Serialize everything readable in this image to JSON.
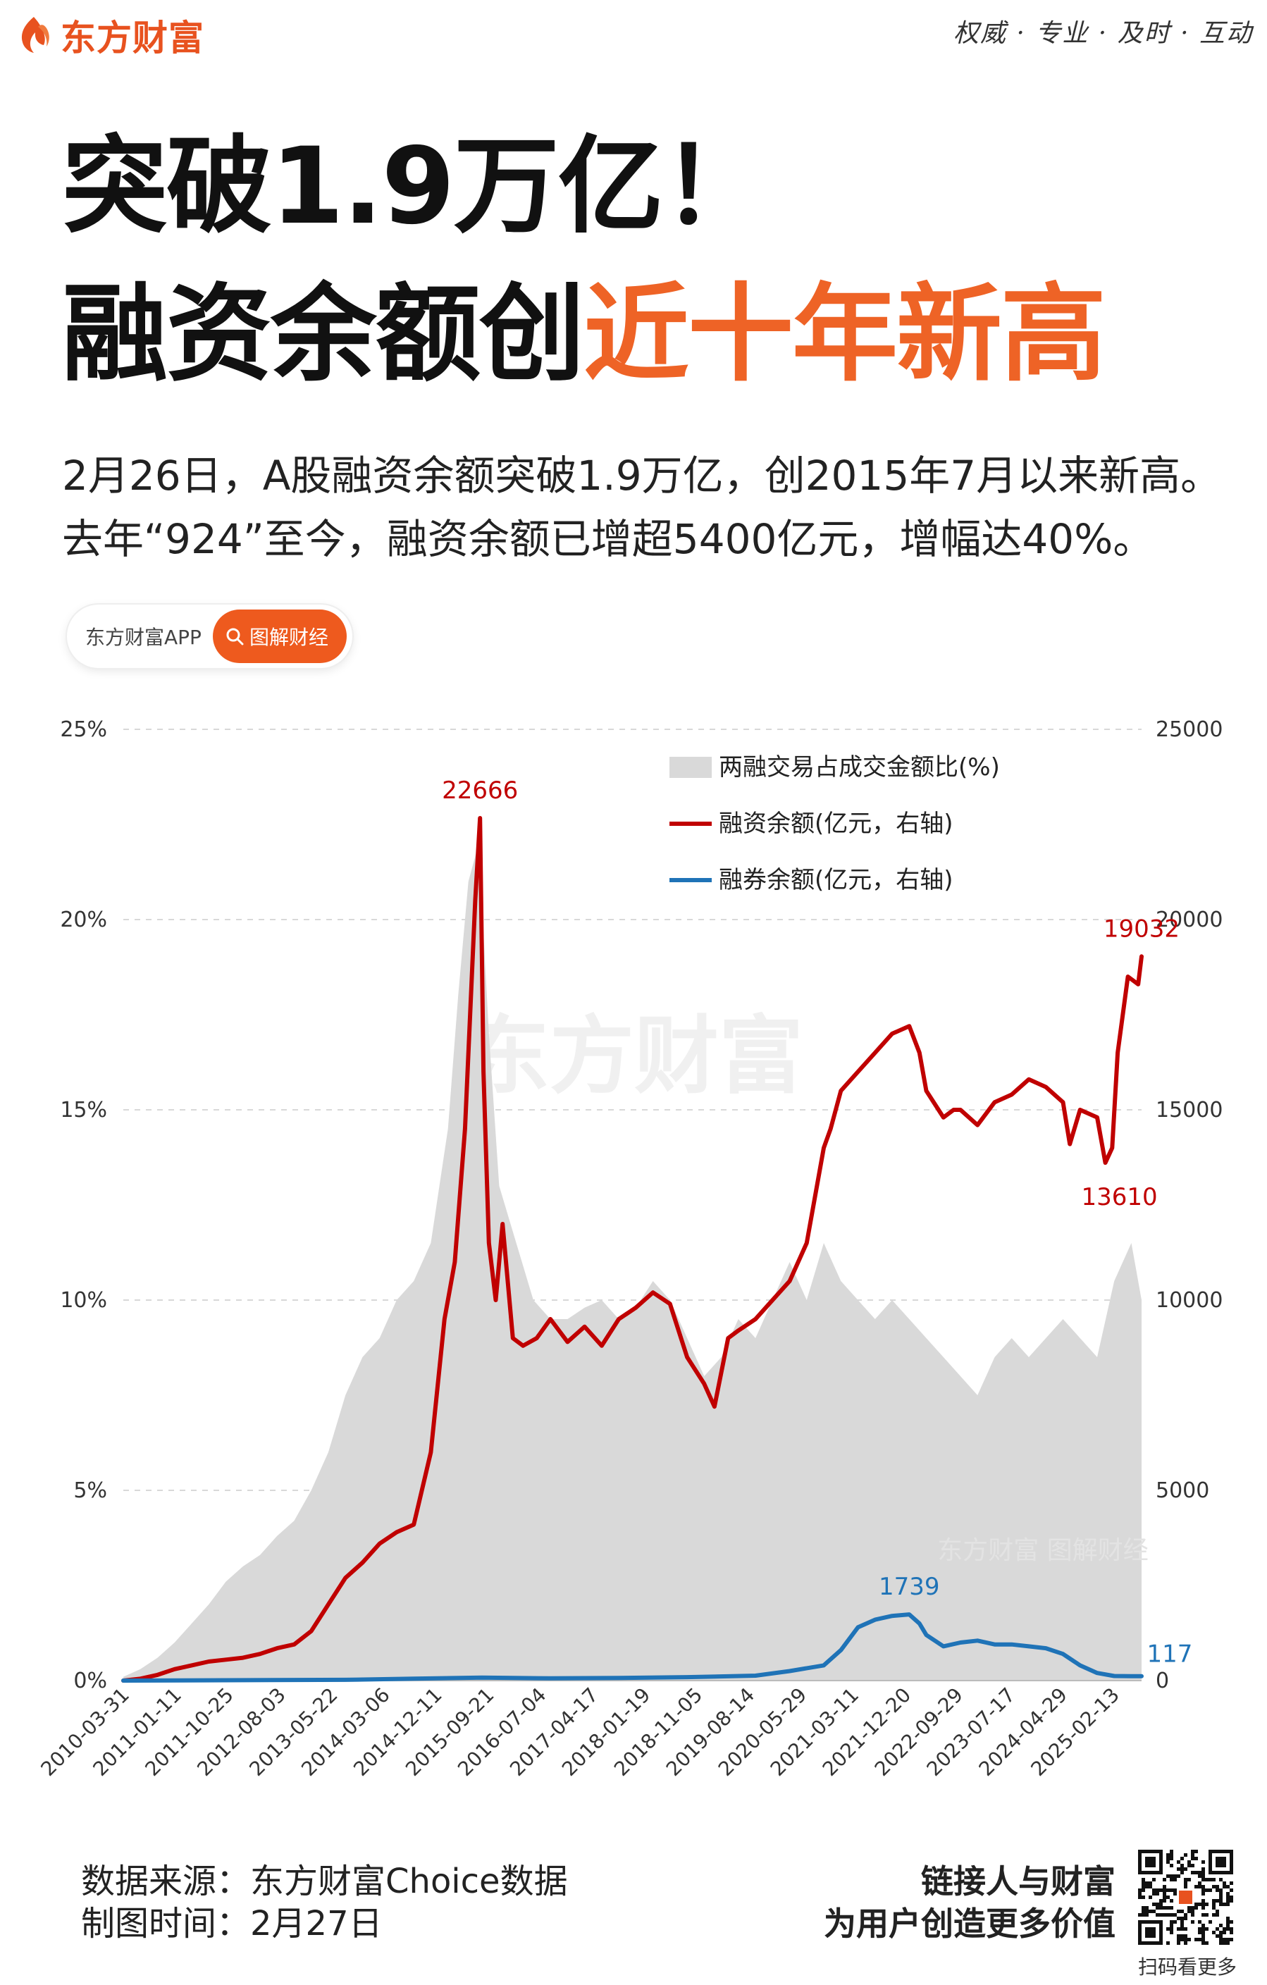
{
  "header": {
    "brand": "东方财富",
    "slogan": "权威 · 专业 · 及时 · 互动",
    "brand_color": "#e8521f"
  },
  "headline": {
    "line1": "突破1.9万亿！",
    "line2_prefix": "融资余额创",
    "line2_highlight": "近十年新高",
    "highlight_color": "#ee6326"
  },
  "summary": {
    "line1": "2月26日，A股融资余额突破1.9万亿，创2015年7月以来新高。",
    "line2": "去年“924”至今，融资余额已增超5400亿元，增幅达40%。"
  },
  "tag": {
    "left": "东方财富APP",
    "right": "图解财经",
    "icon": "search-icon"
  },
  "chart_data": {
    "type": "line",
    "watermark_main": "东方财富",
    "watermark_sub": "东方财富 图解财经",
    "left_axis": {
      "ticks": [
        "0%",
        "5%",
        "10%",
        "15%",
        "20%",
        "25%"
      ],
      "ylim": [
        0,
        25
      ]
    },
    "right_axis": {
      "ticks": [
        "0",
        "5000",
        "10000",
        "15000",
        "20000",
        "25000"
      ],
      "ylim": [
        0,
        25000
      ]
    },
    "x_ticks": [
      "2010-03-31",
      "2011-01-11",
      "2011-10-25",
      "2012-08-03",
      "2013-05-22",
      "2014-03-06",
      "2014-12-11",
      "2015-09-21",
      "2016-07-04",
      "2017-04-17",
      "2018-01-19",
      "2018-11-05",
      "2019-08-14",
      "2020-05-29",
      "2021-03-11",
      "2021-12-20",
      "2022-09-29",
      "2023-07-17",
      "2024-04-29",
      "2025-02-13"
    ],
    "grid": true,
    "legend_position": "top-right",
    "series": [
      {
        "name": "两融交易占成交金额比(%)",
        "kind": "area",
        "axis": "left",
        "color": "#d9d9d9",
        "x": [
          2010.25,
          2010.5,
          2010.75,
          2011.0,
          2011.25,
          2011.5,
          2011.75,
          2012.0,
          2012.25,
          2012.5,
          2012.75,
          2013.0,
          2013.25,
          2013.5,
          2013.75,
          2014.0,
          2014.25,
          2014.5,
          2014.75,
          2015.0,
          2015.15,
          2015.3,
          2015.45,
          2015.6,
          2015.75,
          2016.0,
          2016.25,
          2016.5,
          2016.75,
          2017.0,
          2017.25,
          2017.5,
          2017.75,
          2018.0,
          2018.25,
          2018.5,
          2018.75,
          2019.0,
          2019.25,
          2019.5,
          2019.75,
          2020.0,
          2020.25,
          2020.5,
          2020.75,
          2021.0,
          2021.25,
          2021.5,
          2021.75,
          2022.0,
          2022.25,
          2022.5,
          2022.75,
          2023.0,
          2023.25,
          2023.5,
          2023.75,
          2024.0,
          2024.25,
          2024.5,
          2024.75,
          2025.0,
          2025.15
        ],
        "values": [
          0.1,
          0.3,
          0.6,
          1.0,
          1.5,
          2.0,
          2.6,
          3.0,
          3.3,
          3.8,
          4.2,
          5.0,
          6.0,
          7.5,
          8.5,
          9.0,
          10.0,
          10.5,
          11.5,
          14.5,
          18.0,
          21.0,
          22.0,
          17.0,
          13.0,
          11.5,
          10.0,
          9.5,
          9.5,
          9.8,
          10.0,
          9.5,
          9.8,
          10.5,
          10.0,
          9.0,
          8.0,
          8.5,
          9.5,
          9.0,
          10.0,
          11.0,
          10.0,
          11.5,
          10.5,
          10.0,
          9.5,
          10.0,
          9.5,
          9.0,
          8.5,
          8.0,
          7.5,
          8.5,
          9.0,
          8.5,
          9.0,
          9.5,
          9.0,
          8.5,
          10.5,
          11.5,
          10.0
        ]
      },
      {
        "name": "融资余额(亿元，右轴)",
        "kind": "line",
        "axis": "right",
        "color": "#c00000",
        "x": [
          2010.25,
          2010.5,
          2010.75,
          2011.0,
          2011.25,
          2011.5,
          2011.75,
          2012.0,
          2012.25,
          2012.5,
          2012.75,
          2013.0,
          2013.25,
          2013.5,
          2013.75,
          2014.0,
          2014.25,
          2014.5,
          2014.75,
          2014.95,
          2015.1,
          2015.25,
          2015.4,
          2015.47,
          2015.52,
          2015.6,
          2015.7,
          2015.8,
          2015.95,
          2016.1,
          2016.3,
          2016.5,
          2016.75,
          2017.0,
          2017.25,
          2017.5,
          2017.75,
          2018.0,
          2018.25,
          2018.5,
          2018.75,
          2018.9,
          2019.1,
          2019.25,
          2019.5,
          2019.75,
          2020.0,
          2020.25,
          2020.5,
          2020.6,
          2020.75,
          2021.0,
          2021.25,
          2021.5,
          2021.75,
          2021.9,
          2022.0,
          2022.25,
          2022.4,
          2022.5,
          2022.75,
          2023.0,
          2023.25,
          2023.5,
          2023.75,
          2024.0,
          2024.1,
          2024.25,
          2024.5,
          2024.62,
          2024.72,
          2024.8,
          2024.95,
          2025.1,
          2025.15
        ],
        "values": [
          0,
          50,
          150,
          300,
          400,
          500,
          550,
          600,
          700,
          850,
          950,
          1300,
          2000,
          2700,
          3100,
          3600,
          3900,
          4100,
          6000,
          9500,
          11000,
          14500,
          20500,
          22666,
          16000,
          11500,
          10000,
          12000,
          9000,
          8800,
          9000,
          9500,
          8900,
          9300,
          8800,
          9500,
          9800,
          10200,
          9900,
          8500,
          7800,
          7200,
          9000,
          9200,
          9500,
          10000,
          10500,
          11500,
          14000,
          14500,
          15500,
          16000,
          16500,
          17000,
          17200,
          16500,
          15500,
          14800,
          15000,
          15000,
          14600,
          15200,
          15400,
          15800,
          15600,
          15200,
          14100,
          15000,
          14800,
          13610,
          14000,
          16500,
          18500,
          18300,
          19032
        ]
      },
      {
        "name": "融券余额(亿元，右轴)",
        "kind": "line",
        "axis": "right",
        "color": "#1f73b7",
        "x": [
          2010.25,
          2013.5,
          2014.5,
          2015.5,
          2016.5,
          2017.5,
          2018.5,
          2019.5,
          2020.0,
          2020.5,
          2020.75,
          2021.0,
          2021.25,
          2021.5,
          2021.75,
          2021.9,
          2022.0,
          2022.25,
          2022.5,
          2022.75,
          2023.0,
          2023.25,
          2023.5,
          2023.75,
          2024.0,
          2024.25,
          2024.5,
          2024.75,
          2025.0,
          2025.15
        ],
        "values": [
          0,
          20,
          50,
          80,
          60,
          70,
          90,
          130,
          250,
          400,
          800,
          1400,
          1600,
          1700,
          1739,
          1500,
          1200,
          900,
          1000,
          1050,
          950,
          950,
          900,
          850,
          700,
          400,
          200,
          120,
          117,
          117
        ]
      }
    ],
    "annotations": [
      {
        "label": "22666",
        "x": 2015.47,
        "y": 22666,
        "color": "#c00000"
      },
      {
        "label": "19032",
        "x": 2025.15,
        "y": 19032,
        "color": "#c00000"
      },
      {
        "label": "13610",
        "x": 2024.62,
        "y": 13610,
        "color": "#c00000"
      },
      {
        "label": "1739",
        "x": 2021.75,
        "y": 1739,
        "color": "#1f73b7"
      },
      {
        "label": "117",
        "x": 2025.15,
        "y": 117,
        "color": "#1f73b7"
      }
    ]
  },
  "footer": {
    "source": "数据来源：东方财富Choice数据",
    "date": "制图时间：2月27日",
    "tagline1": "链接人与财富",
    "tagline2": "为用户创造更多价值",
    "qr_caption": "扫码看更多"
  }
}
